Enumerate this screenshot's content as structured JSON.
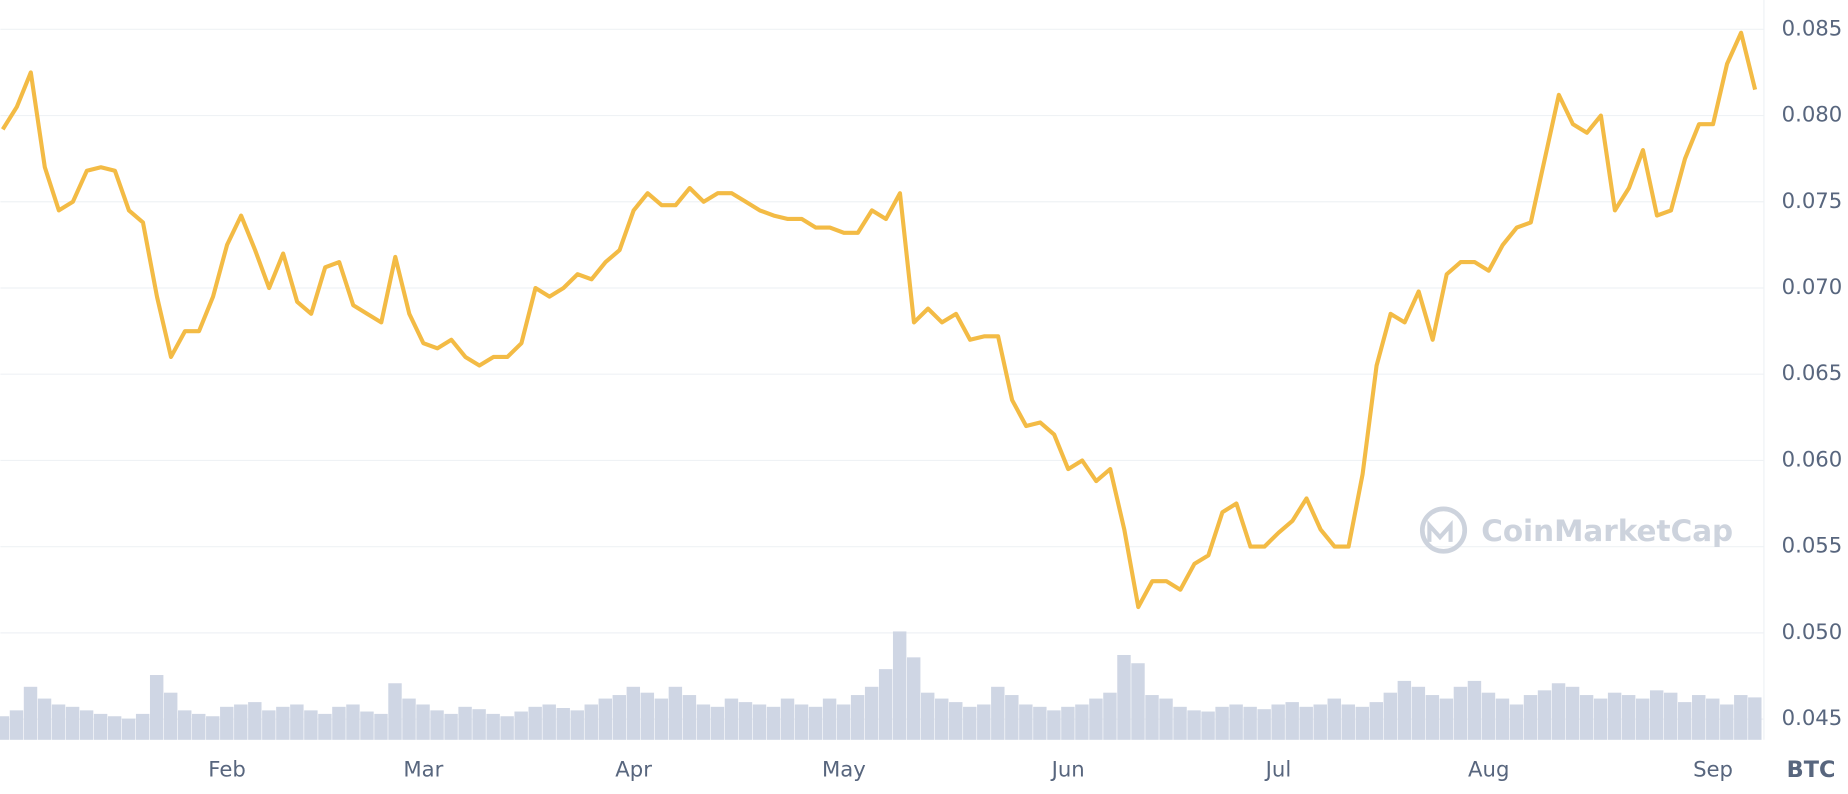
{
  "chart_data": {
    "type": "line",
    "categories": [
      null,
      null,
      null,
      null,
      null,
      null,
      null,
      null,
      null,
      null,
      null,
      null,
      null,
      null,
      null,
      null,
      "Feb",
      null,
      null,
      null,
      null,
      null,
      null,
      null,
      null,
      null,
      null,
      null,
      null,
      null,
      "Mar",
      null,
      null,
      null,
      null,
      null,
      null,
      null,
      null,
      null,
      null,
      null,
      null,
      null,
      null,
      "Apr",
      null,
      null,
      null,
      null,
      null,
      null,
      null,
      null,
      null,
      null,
      null,
      null,
      null,
      null,
      "May",
      null,
      null,
      null,
      null,
      null,
      null,
      null,
      null,
      null,
      null,
      null,
      null,
      null,
      null,
      null,
      "Jun",
      null,
      null,
      null,
      null,
      null,
      null,
      null,
      null,
      null,
      null,
      null,
      null,
      null,
      null,
      "Jul",
      null,
      null,
      null,
      null,
      null,
      null,
      null,
      null,
      null,
      null,
      null,
      null,
      null,
      null,
      "Aug",
      null,
      null,
      null,
      null,
      null,
      null,
      null,
      null,
      null,
      null,
      null,
      null,
      null,
      null,
      null,
      "Sep",
      null,
      null,
      null
    ],
    "series": [
      {
        "color": "#f3bb45",
        "values": [
          0.0792,
          0.0805,
          0.0825,
          0.077,
          0.0745,
          0.075,
          0.0768,
          0.077,
          0.0768,
          0.0745,
          0.0738,
          0.0695,
          0.066,
          0.0675,
          0.0675,
          0.0695,
          0.0725,
          0.0742,
          0.0722,
          0.07,
          0.072,
          0.0692,
          0.0685,
          0.0712,
          0.0715,
          0.069,
          0.0685,
          0.068,
          0.0718,
          0.0685,
          0.0668,
          0.0665,
          0.067,
          0.066,
          0.0655,
          0.066,
          0.066,
          0.0668,
          0.07,
          0.0695,
          0.07,
          0.0708,
          0.0705,
          0.0715,
          0.0722,
          0.0745,
          0.0755,
          0.0748,
          0.0748,
          0.0758,
          0.075,
          0.0755,
          0.0755,
          0.075,
          0.0745,
          0.0742,
          0.074,
          0.074,
          0.0735,
          0.0735,
          0.0732,
          0.0732,
          0.0745,
          0.074,
          0.0755,
          0.068,
          0.0688,
          0.068,
          0.0685,
          0.067,
          0.0672,
          0.0672,
          0.0635,
          0.062,
          0.0622,
          0.0615,
          0.0595,
          0.06,
          0.0588,
          0.0595,
          0.056,
          0.0515,
          0.053,
          0.053,
          0.0525,
          0.054,
          0.0545,
          0.057,
          0.0575,
          0.055,
          0.055,
          0.0558,
          0.0565,
          0.0578,
          0.056,
          0.055,
          0.055,
          0.0592,
          0.0655,
          0.0685,
          0.068,
          0.0698,
          0.067,
          0.0708,
          0.0715,
          0.0715,
          0.071,
          0.0725,
          0.0735,
          0.0738,
          0.0775,
          0.0812,
          0.0795,
          0.079,
          0.08,
          0.0745,
          0.0758,
          0.078,
          0.0742,
          0.0745,
          0.0775,
          0.0795,
          0.0795,
          0.083,
          0.0848,
          0.0815
        ]
      }
    ],
    "volume": {
      "color": "#cfd6e4",
      "values": [
        20,
        25,
        45,
        35,
        30,
        28,
        25,
        22,
        20,
        18,
        22,
        55,
        40,
        25,
        22,
        20,
        28,
        30,
        32,
        25,
        28,
        30,
        25,
        22,
        28,
        30,
        24,
        22,
        48,
        35,
        30,
        25,
        22,
        28,
        26,
        22,
        20,
        24,
        28,
        30,
        27,
        25,
        30,
        35,
        38,
        45,
        40,
        35,
        45,
        38,
        30,
        28,
        35,
        32,
        30,
        28,
        35,
        30,
        28,
        35,
        30,
        38,
        45,
        60,
        92,
        70,
        40,
        35,
        32,
        28,
        30,
        45,
        38,
        30,
        28,
        25,
        28,
        30,
        35,
        40,
        72,
        65,
        38,
        35,
        28,
        25,
        24,
        28,
        30,
        28,
        26,
        30,
        32,
        28,
        30,
        35,
        30,
        28,
        32,
        40,
        50,
        45,
        38,
        35,
        45,
        50,
        40,
        35,
        30,
        38,
        42,
        48,
        45,
        38,
        35,
        40,
        38,
        35,
        42,
        40,
        32,
        38,
        35,
        30,
        38,
        36
      ]
    },
    "ylim": [
      0.0438,
      0.0867
    ],
    "yticks": [
      0.045,
      {
        "value": 0.05,
        "label": "0.050"
      },
      0.055,
      {
        "value": 0.06,
        "label": "0.060"
      },
      0.065,
      {
        "value": 0.07,
        "label": "0.070"
      },
      0.075,
      {
        "value": 0.08,
        "label": "0.080"
      },
      0.085
    ],
    "grid": true,
    "unit": "BTC",
    "watermark": "CoinMarketCap"
  }
}
